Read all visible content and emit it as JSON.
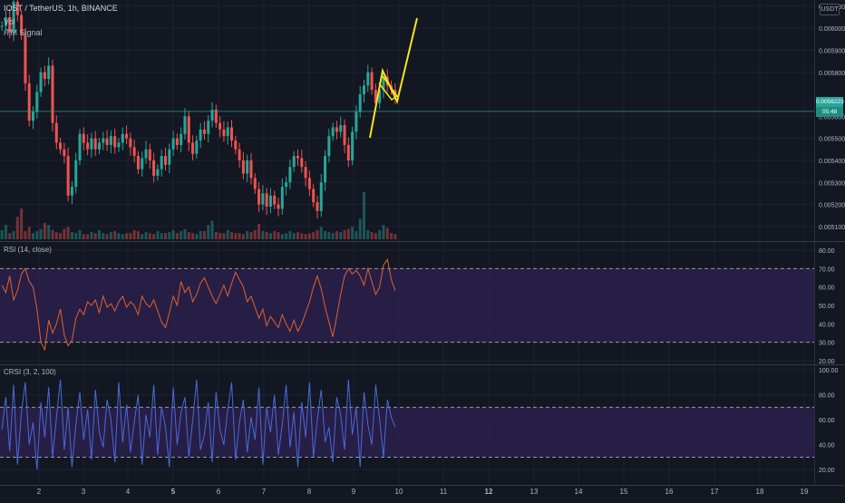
{
  "header": {
    "symbol": "IOST / TetherUS, 1h, BINANCE",
    "indicator_vol": "Vol",
    "indicator_signal": "iTM Signal"
  },
  "currency": "USDT",
  "colors": {
    "background": "#131722",
    "up": "#26a69a",
    "down": "#ef5350",
    "grid": "#1e2230",
    "rsi_line": "#e0612f",
    "crsi_line": "#4a6ad8",
    "band_fill": "#2a1f4a",
    "drawing": "#f5e51b",
    "price_line": "#26a69a"
  },
  "price_badges": {
    "last_price": "0.0056223",
    "countdown": "05:48"
  },
  "chart_data": [
    {
      "type": "candlestick",
      "name": "price",
      "y_ticks": [
        "0.006100",
        "0.006000",
        "0.005900",
        "0.005800",
        "0.005600",
        "0.005500",
        "0.005400",
        "0.005300",
        "0.005200",
        "0.005100"
      ],
      "ylim": [
        0.00505,
        0.00612
      ],
      "x_ticks": [
        "2",
        "3",
        "4",
        "5",
        "6",
        "7",
        "8",
        "9",
        "10",
        "11",
        "12",
        "13",
        "14",
        "15",
        "16",
        "17",
        "18",
        "19"
      ],
      "last_price": 0.0056223,
      "close_path": [
        0.00601,
        0.00605,
        0.00598,
        0.00612,
        0.00606,
        0.00597,
        0.00575,
        0.00558,
        0.00562,
        0.00571,
        0.0058,
        0.00577,
        0.00583,
        0.00557,
        0.00548,
        0.00545,
        0.00542,
        0.00524,
        0.00528,
        0.0054,
        0.00552,
        0.00548,
        0.00545,
        0.0055,
        0.00545,
        0.00548,
        0.0055,
        0.00547,
        0.00551,
        0.00546,
        0.00548,
        0.00552,
        0.0055,
        0.00546,
        0.00542,
        0.00536,
        0.00541,
        0.00545,
        0.0054,
        0.00533,
        0.00536,
        0.00542,
        0.00538,
        0.00545,
        0.0055,
        0.00547,
        0.00552,
        0.0056,
        0.00548,
        0.00543,
        0.00549,
        0.00554,
        0.00552,
        0.00558,
        0.00563,
        0.00557,
        0.00554,
        0.00551,
        0.00555,
        0.00549,
        0.00545,
        0.0054,
        0.00534,
        0.0054,
        0.00532,
        0.00527,
        0.0052,
        0.00525,
        0.00519,
        0.00524,
        0.0052,
        0.00518,
        0.00528,
        0.0053,
        0.00537,
        0.00542,
        0.00541,
        0.00537,
        0.00532,
        0.00527,
        0.00521,
        0.00517,
        0.0053,
        0.00542,
        0.00551,
        0.00555,
        0.00553,
        0.00556,
        0.00547,
        0.0054,
        0.00553,
        0.00562,
        0.0057,
        0.00574,
        0.0058,
        0.00572,
        0.00566,
        0.00572,
        0.00578,
        0.00574,
        0.00572,
        0.00569
      ],
      "volume": [
        9,
        14,
        6,
        8,
        22,
        30,
        8,
        12,
        6,
        8,
        10,
        16,
        14,
        9,
        7,
        6,
        10,
        12,
        7,
        6,
        9,
        5,
        5,
        7,
        6,
        9,
        6,
        5,
        7,
        8,
        6,
        5,
        6,
        6,
        9,
        8,
        5,
        7,
        6,
        5,
        8,
        6,
        6,
        7,
        9,
        6,
        8,
        10,
        7,
        6,
        5,
        8,
        8,
        14,
        18,
        7,
        6,
        6,
        9,
        7,
        6,
        6,
        5,
        8,
        7,
        9,
        15,
        8,
        7,
        6,
        8,
        7,
        5,
        6,
        8,
        6,
        7,
        6,
        5,
        6,
        7,
        9,
        12,
        8,
        7,
        6,
        8,
        7,
        9,
        10,
        12,
        8,
        20,
        46,
        9,
        7,
        6,
        9,
        14,
        11,
        6,
        5
      ]
    },
    {
      "type": "line",
      "name": "RSI (14, close)",
      "title": "RSI (14, close)",
      "y_ticks": [
        "80.00",
        "70.00",
        "60.00",
        "50.00",
        "40.00",
        "30.00",
        "20.00"
      ],
      "ylim": [
        20,
        80
      ],
      "band": [
        30,
        70
      ],
      "values": [
        61,
        57,
        66,
        53,
        58,
        67,
        70,
        63,
        60,
        48,
        30,
        26,
        42,
        35,
        40,
        48,
        34,
        28,
        31,
        43,
        48,
        45,
        52,
        50,
        53,
        46,
        55,
        49,
        51,
        47,
        52,
        55,
        49,
        52,
        50,
        45,
        55,
        51,
        49,
        53,
        47,
        41,
        38,
        46,
        55,
        50,
        63,
        57,
        60,
        52,
        56,
        62,
        65,
        60,
        55,
        51,
        56,
        61,
        55,
        62,
        68,
        64,
        60,
        52,
        55,
        49,
        43,
        48,
        39,
        44,
        41,
        38,
        45,
        40,
        36,
        42,
        36,
        40,
        46,
        52,
        60,
        66,
        59,
        49,
        41,
        33,
        44,
        56,
        66,
        70,
        67,
        69,
        66,
        61,
        70,
        63,
        56,
        60,
        72,
        75,
        64,
        58
      ]
    },
    {
      "type": "line",
      "name": "CRSI (3, 2, 100)",
      "title": "CRSI (3, 2, 100)",
      "y_ticks": [
        "100.00",
        "80.00",
        "60.00",
        "40.00",
        "20.00"
      ],
      "ylim": [
        10,
        100
      ],
      "band": [
        30,
        70
      ],
      "values": [
        52,
        78,
        35,
        88,
        24,
        66,
        90,
        40,
        58,
        20,
        74,
        46,
        86,
        30,
        62,
        92,
        36,
        70,
        22,
        56,
        82,
        44,
        68,
        28,
        84,
        50,
        38,
        76,
        60,
        26,
        90,
        42,
        72,
        34,
        58,
        80,
        24,
        64,
        46,
        88,
        32,
        70,
        54,
        22,
        86,
        40,
        66,
        78,
        30,
        60,
        92,
        36,
        48,
        74,
        26,
        82,
        52,
        40,
        68,
        90,
        28,
        58,
        76,
        34,
        62,
        44,
        86,
        24,
        70,
        50,
        80,
        32,
        56,
        88,
        38,
        66,
        22,
        74,
        46,
        90,
        30,
        60,
        84,
        42,
        54,
        26,
        78,
        64,
        36,
        92,
        48,
        70,
        22,
        82,
        56,
        40,
        88,
        60,
        30,
        76,
        62,
        54
      ]
    }
  ]
}
